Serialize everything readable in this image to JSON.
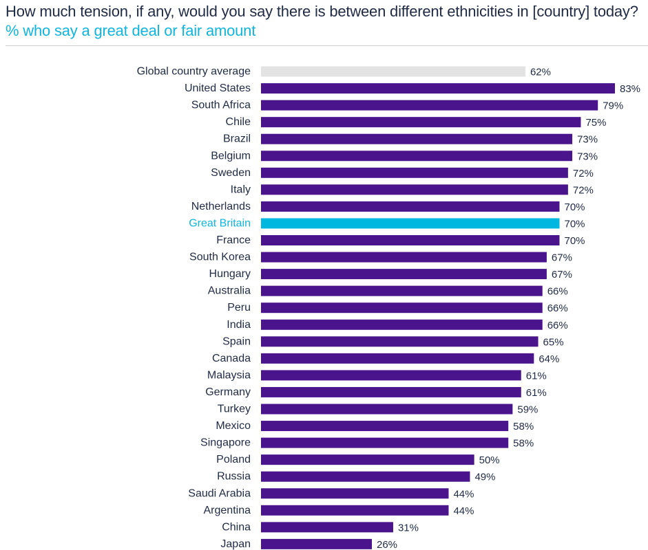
{
  "chart_data": {
    "type": "bar",
    "orientation": "horizontal",
    "title": "How much tension, if any, would you say there is between different ethnicities in [country] today?",
    "subtitle": "% who say a great deal or fair amount",
    "xlabel": "",
    "ylabel": "",
    "xlim": [
      0,
      83
    ],
    "value_suffix": "%",
    "categories": [
      "Global country average",
      "United States",
      "South Africa",
      "Chile",
      "Brazil",
      "Belgium",
      "Sweden",
      "Italy",
      "Netherlands",
      "Great Britain",
      "France",
      "South Korea",
      "Hungary",
      "Australia",
      "Peru",
      "India",
      "Spain",
      "Canada",
      "Malaysia",
      "Germany",
      "Turkey",
      "Mexico",
      "Singapore",
      "Poland",
      "Russia",
      "Saudi Arabia",
      "Argentina",
      "China",
      "Japan"
    ],
    "values": [
      62,
      83,
      79,
      75,
      73,
      73,
      72,
      72,
      70,
      70,
      70,
      67,
      67,
      66,
      66,
      66,
      65,
      64,
      61,
      61,
      59,
      58,
      58,
      50,
      49,
      44,
      44,
      31,
      26
    ],
    "highlight": {
      "Global country average": "average",
      "Great Britain": "focus"
    }
  },
  "colors": {
    "bar": "#4a148c",
    "average_bar": "#e3e3e3",
    "focus_bar": "#00b7e0",
    "focus_label": "#10b5dd",
    "text": "#1f2a44",
    "subtitle": "#10b5dd"
  }
}
